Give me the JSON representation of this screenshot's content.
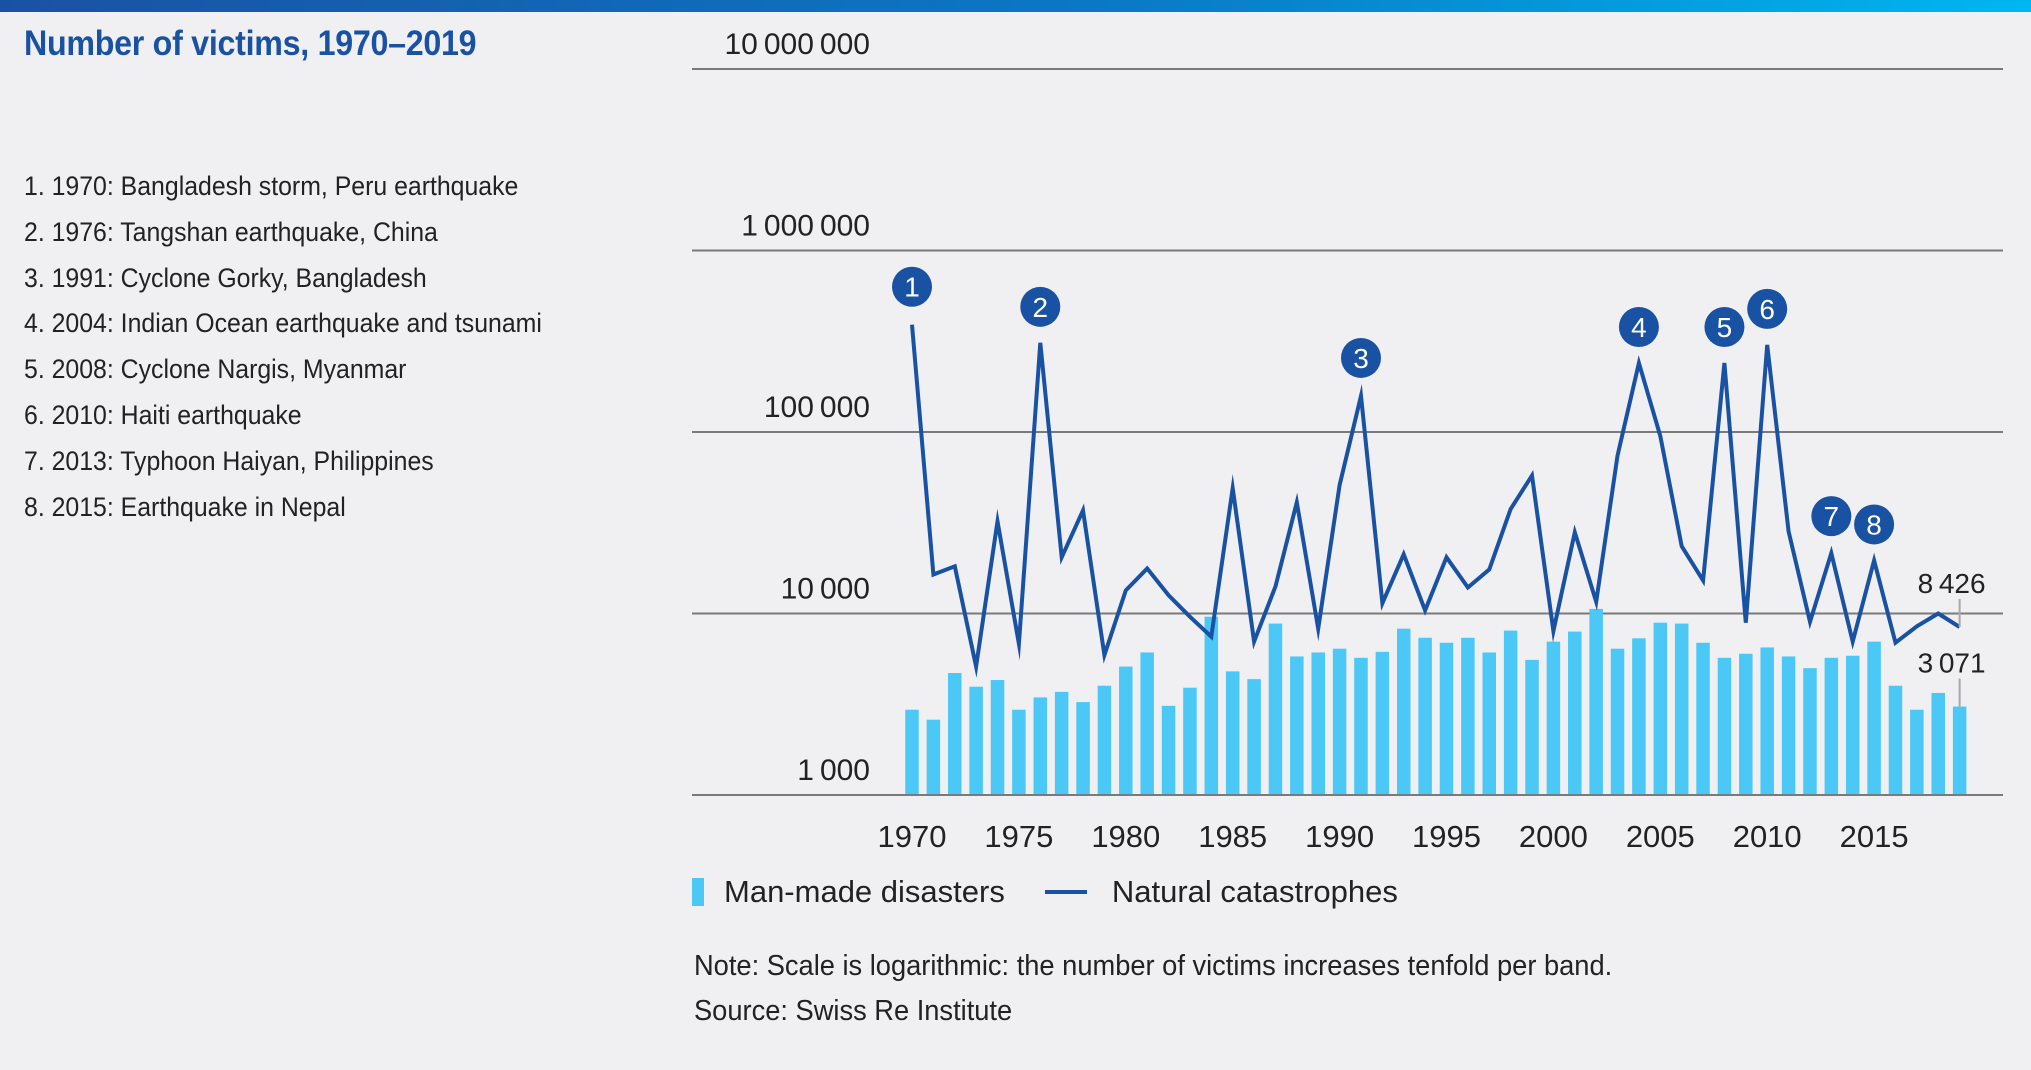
{
  "title": "Number of victims, 1970–2019",
  "events": [
    "1. 1970: Bangladesh storm, Peru earthquake",
    "2. 1976: Tangshan earthquake, China",
    "3. 1991: Cyclone Gorky, Bangladesh",
    "4. 2004: Indian Ocean earthquake and tsunami",
    "5. 2008: Cyclone Nargis, Myanmar",
    "6. 2010: Haiti earthquake",
    "7. 2013: Typhoon Haiyan, Philippines",
    "8. 2015: Earthquake in Nepal"
  ],
  "legend": {
    "bars": "Man-made disasters",
    "line": "Natural catastrophes"
  },
  "note": "Note: Scale is logarithmic: the number of victims increases tenfold per band.",
  "source": "Source: Swiss Re Institute",
  "colors": {
    "title": "#1a52a3",
    "bars": "#4bc8f5",
    "line": "#1a52a3",
    "markers": "#1a52a3",
    "gridline": "#7a7a7a",
    "background": "#f0f0f2"
  },
  "chart_data": {
    "type": "bar+line",
    "title": "Number of victims, 1970–2019",
    "xlabel": "",
    "ylabel": "",
    "yscale": "log",
    "ylim": [
      1000,
      10000000
    ],
    "yticks": [
      1000,
      10000,
      100000,
      1000000,
      10000000
    ],
    "ytick_labels": [
      "1000",
      "10000",
      "100000",
      "1000000",
      "10000000"
    ],
    "grid": true,
    "legend_position": "bottom-left",
    "x": [
      1970,
      1971,
      1972,
      1973,
      1974,
      1975,
      1976,
      1977,
      1978,
      1979,
      1980,
      1981,
      1982,
      1983,
      1984,
      1985,
      1986,
      1987,
      1988,
      1989,
      1990,
      1991,
      1992,
      1993,
      1994,
      1995,
      1996,
      1997,
      1998,
      1999,
      2000,
      2001,
      2002,
      2003,
      2004,
      2005,
      2006,
      2007,
      2008,
      2009,
      2010,
      2011,
      2012,
      2013,
      2014,
      2015,
      2016,
      2017,
      2018,
      2019
    ],
    "xtick_labels": [
      "1970",
      "1975",
      "1980",
      "1985",
      "1990",
      "1995",
      "2000",
      "2005",
      "2010",
      "2015"
    ],
    "series": [
      {
        "name": "Man-made disasters",
        "type": "bar",
        "values": [
          2950,
          2600,
          4700,
          3950,
          4300,
          2950,
          3450,
          3700,
          3250,
          4000,
          5100,
          6100,
          3100,
          3900,
          9600,
          4800,
          4350,
          8800,
          5800,
          6100,
          6400,
          5700,
          6150,
          8250,
          7350,
          6900,
          7350,
          6100,
          8050,
          5550,
          7000,
          7950,
          10600,
          6400,
          7300,
          8900,
          8800,
          6900,
          5700,
          6000,
          6500,
          5800,
          5000,
          5700,
          5850,
          7000,
          4000,
          2950,
          3650,
          3071
        ]
      },
      {
        "name": "Natural catastrophes",
        "type": "line",
        "values": [
          390000,
          16400,
          18200,
          5100,
          32200,
          6800,
          310000,
          20400,
          37000,
          5900,
          13400,
          17700,
          12600,
          9600,
          7450,
          49000,
          7000,
          14100,
          41000,
          8250,
          51000,
          158000,
          11400,
          21200,
          10400,
          20400,
          13900,
          17500,
          37600,
          57600,
          8000,
          28000,
          11600,
          74000,
          240000,
          95000,
          23500,
          15200,
          240000,
          8900,
          302000,
          28300,
          9000,
          21500,
          7000,
          19600,
          6900,
          8500,
          10000,
          8426
        ]
      }
    ],
    "markers": [
      {
        "label": "1",
        "year": 1970
      },
      {
        "label": "2",
        "year": 1976
      },
      {
        "label": "3",
        "year": 1991
      },
      {
        "label": "4",
        "year": 2004
      },
      {
        "label": "5",
        "year": 2008
      },
      {
        "label": "6",
        "year": 2010
      },
      {
        "label": "7",
        "year": 2013
      },
      {
        "label": "8",
        "year": 2015
      }
    ],
    "annotations": [
      {
        "series": "Natural catastrophes",
        "year": 2019,
        "text": "8 426"
      },
      {
        "series": "Man-made disasters",
        "year": 2019,
        "text": "3 071"
      }
    ]
  }
}
